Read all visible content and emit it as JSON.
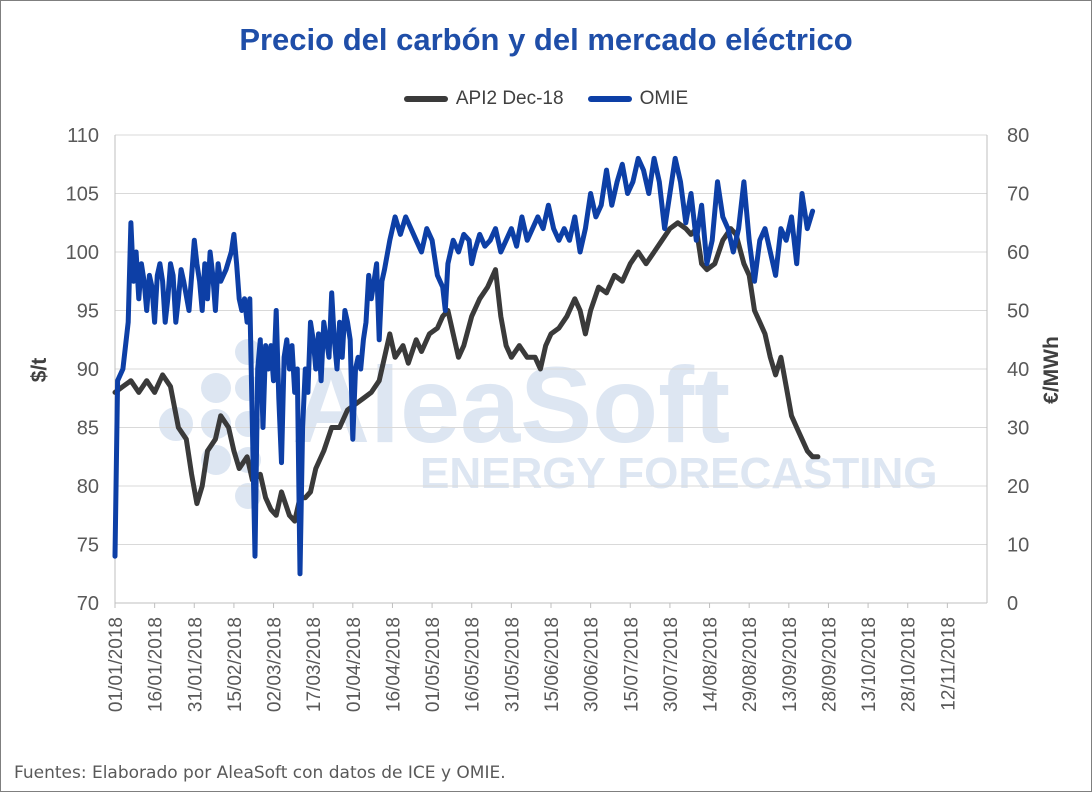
{
  "title": "Precio del carbón y del mercado eléctrico",
  "source": "Fuentes: Elaborado por AleaSoft con datos de ICE y OMIE.",
  "watermark": {
    "line1": "AleaSoft",
    "line2": "ENERGY FORECASTING"
  },
  "colors": {
    "api2": "#3a3a3a",
    "omie": "#0d3fa6",
    "title": "#1f4ea8",
    "watermark": "#dde6f2"
  },
  "chart_data": {
    "type": "line",
    "title": "Precio del carbón y del mercado eléctrico",
    "ylabel_left": "$/t",
    "ylabel_right": "€/MWh",
    "ylim_left": [
      70,
      110
    ],
    "ylim_right": [
      0,
      80
    ],
    "yticks_left": [
      "70",
      "75",
      "80",
      "85",
      "90",
      "95",
      "100",
      "105",
      "110"
    ],
    "yticks_right": [
      "0",
      "10",
      "20",
      "30",
      "40",
      "50",
      "60",
      "70",
      "80"
    ],
    "xticks": [
      "01/01/2018",
      "16/01/2018",
      "31/01/2018",
      "15/02/2018",
      "02/03/2018",
      "17/03/2018",
      "01/04/2018",
      "16/04/2018",
      "01/05/2018",
      "16/05/2018",
      "31/05/2018",
      "15/06/2018",
      "30/06/2018",
      "15/07/2018",
      "30/07/2018",
      "14/08/2018",
      "29/08/2018",
      "13/09/2018",
      "28/09/2018",
      "13/10/2018",
      "28/10/2018",
      "12/11/2018"
    ],
    "x_day_range": [
      0,
      330
    ],
    "grid": "horizontal",
    "legend_position": "top",
    "series": [
      {
        "name": "API2 Dec-18",
        "axis": "left",
        "points": [
          [
            0,
            88
          ],
          [
            3,
            88.5
          ],
          [
            6,
            89
          ],
          [
            9,
            88
          ],
          [
            12,
            89
          ],
          [
            15,
            88
          ],
          [
            18,
            89.5
          ],
          [
            21,
            88.5
          ],
          [
            24,
            85
          ],
          [
            27,
            84
          ],
          [
            29,
            81
          ],
          [
            31,
            78.5
          ],
          [
            33,
            80
          ],
          [
            35,
            83
          ],
          [
            38,
            84
          ],
          [
            40,
            86
          ],
          [
            43,
            85
          ],
          [
            45,
            83
          ],
          [
            47,
            81.5
          ],
          [
            50,
            82.5
          ],
          [
            52,
            80.5
          ],
          [
            55,
            81
          ],
          [
            57,
            79
          ],
          [
            59,
            78
          ],
          [
            61,
            77.5
          ],
          [
            63,
            79.5
          ],
          [
            66,
            77.5
          ],
          [
            68,
            77
          ],
          [
            70,
            79
          ],
          [
            72,
            79
          ],
          [
            74,
            79.5
          ],
          [
            76,
            81.5
          ],
          [
            79,
            83
          ],
          [
            82,
            85
          ],
          [
            85,
            85
          ],
          [
            88,
            86.5
          ],
          [
            91,
            87
          ],
          [
            94,
            87.5
          ],
          [
            97,
            88
          ],
          [
            100,
            89
          ],
          [
            102,
            91
          ],
          [
            104,
            93
          ],
          [
            106,
            91
          ],
          [
            109,
            92
          ],
          [
            111,
            90.5
          ],
          [
            114,
            92.5
          ],
          [
            116,
            91.5
          ],
          [
            119,
            93
          ],
          [
            122,
            93.5
          ],
          [
            124,
            94.5
          ],
          [
            126,
            95
          ],
          [
            128,
            93
          ],
          [
            130,
            91
          ],
          [
            132,
            92
          ],
          [
            135,
            94.5
          ],
          [
            138,
            96
          ],
          [
            141,
            97
          ],
          [
            144,
            98.5
          ],
          [
            146,
            94.5
          ],
          [
            148,
            92
          ],
          [
            150,
            91
          ],
          [
            153,
            92
          ],
          [
            156,
            91
          ],
          [
            159,
            91
          ],
          [
            161,
            90
          ],
          [
            163,
            92
          ],
          [
            165,
            93
          ],
          [
            168,
            93.5
          ],
          [
            171,
            94.5
          ],
          [
            174,
            96
          ],
          [
            176,
            95
          ],
          [
            178,
            93
          ],
          [
            180,
            95
          ],
          [
            183,
            97
          ],
          [
            186,
            96.5
          ],
          [
            189,
            98
          ],
          [
            192,
            97.5
          ],
          [
            195,
            99
          ],
          [
            198,
            100
          ],
          [
            201,
            99
          ],
          [
            204,
            100
          ],
          [
            207,
            101
          ],
          [
            210,
            102
          ],
          [
            213,
            102.5
          ],
          [
            216,
            102
          ],
          [
            218,
            101.5
          ],
          [
            220,
            102
          ],
          [
            222,
            99
          ],
          [
            224,
            98.5
          ],
          [
            227,
            99
          ],
          [
            230,
            101
          ],
          [
            233,
            102
          ],
          [
            235,
            101.5
          ],
          [
            238,
            99
          ],
          [
            240,
            98
          ],
          [
            242,
            95
          ],
          [
            244,
            94
          ],
          [
            246,
            93
          ],
          [
            248,
            91
          ],
          [
            250,
            89.5
          ],
          [
            252,
            91
          ],
          [
            254,
            88.5
          ],
          [
            256,
            86
          ],
          [
            258,
            85
          ],
          [
            260,
            84
          ],
          [
            262,
            83
          ],
          [
            264,
            82.5
          ],
          [
            266,
            82.5
          ]
        ]
      },
      {
        "name": "OMIE",
        "axis": "right",
        "points": [
          [
            0,
            8
          ],
          [
            1,
            38
          ],
          [
            3,
            40
          ],
          [
            5,
            48
          ],
          [
            6,
            65
          ],
          [
            7,
            55
          ],
          [
            8,
            60
          ],
          [
            9,
            52
          ],
          [
            10,
            58
          ],
          [
            11,
            55
          ],
          [
            12,
            50
          ],
          [
            13,
            56
          ],
          [
            14,
            54
          ],
          [
            15,
            48
          ],
          [
            16,
            56
          ],
          [
            17,
            58
          ],
          [
            18,
            55
          ],
          [
            19,
            48
          ],
          [
            20,
            52
          ],
          [
            21,
            58
          ],
          [
            22,
            56
          ],
          [
            23,
            48
          ],
          [
            24,
            52
          ],
          [
            25,
            57
          ],
          [
            26,
            55
          ],
          [
            28,
            50
          ],
          [
            30,
            62
          ],
          [
            31,
            58
          ],
          [
            32,
            55
          ],
          [
            33,
            50
          ],
          [
            34,
            58
          ],
          [
            35,
            52
          ],
          [
            36,
            60
          ],
          [
            37,
            56
          ],
          [
            38,
            50
          ],
          [
            39,
            58
          ],
          [
            40,
            55
          ],
          [
            42,
            57
          ],
          [
            44,
            60
          ],
          [
            45,
            63
          ],
          [
            46,
            58
          ],
          [
            47,
            52
          ],
          [
            48,
            50
          ],
          [
            49,
            52
          ],
          [
            50,
            48
          ],
          [
            51,
            52
          ],
          [
            53,
            8
          ],
          [
            54,
            40
          ],
          [
            55,
            45
          ],
          [
            56,
            30
          ],
          [
            57,
            44
          ],
          [
            58,
            40
          ],
          [
            59,
            44
          ],
          [
            60,
            38
          ],
          [
            61,
            50
          ],
          [
            62,
            35
          ],
          [
            63,
            24
          ],
          [
            64,
            42
          ],
          [
            65,
            45
          ],
          [
            66,
            40
          ],
          [
            67,
            44
          ],
          [
            68,
            36
          ],
          [
            69,
            40
          ],
          [
            70,
            5
          ],
          [
            71,
            30
          ],
          [
            72,
            40
          ],
          [
            73,
            36
          ],
          [
            74,
            48
          ],
          [
            75,
            45
          ],
          [
            76,
            40
          ],
          [
            77,
            46
          ],
          [
            78,
            38
          ],
          [
            79,
            48
          ],
          [
            80,
            45
          ],
          [
            81,
            42
          ],
          [
            82,
            53
          ],
          [
            83,
            45
          ],
          [
            84,
            40
          ],
          [
            85,
            48
          ],
          [
            86,
            42
          ],
          [
            87,
            50
          ],
          [
            88,
            48
          ],
          [
            89,
            45
          ],
          [
            90,
            28
          ],
          [
            91,
            40
          ],
          [
            92,
            42
          ],
          [
            93,
            40
          ],
          [
            94,
            45
          ],
          [
            95,
            48
          ],
          [
            96,
            56
          ],
          [
            97,
            52
          ],
          [
            98,
            55
          ],
          [
            99,
            58
          ],
          [
            100,
            45
          ],
          [
            101,
            55
          ],
          [
            102,
            57
          ],
          [
            104,
            62
          ],
          [
            106,
            66
          ],
          [
            108,
            63
          ],
          [
            110,
            66
          ],
          [
            112,
            64
          ],
          [
            114,
            62
          ],
          [
            116,
            60
          ],
          [
            118,
            64
          ],
          [
            120,
            62
          ],
          [
            121,
            59
          ],
          [
            122,
            56
          ],
          [
            124,
            54
          ],
          [
            125,
            50
          ],
          [
            126,
            58
          ],
          [
            128,
            62
          ],
          [
            130,
            60
          ],
          [
            132,
            63
          ],
          [
            134,
            62
          ],
          [
            135,
            58
          ],
          [
            136,
            60
          ],
          [
            138,
            63
          ],
          [
            140,
            61
          ],
          [
            142,
            62
          ],
          [
            144,
            64
          ],
          [
            146,
            60
          ],
          [
            148,
            62
          ],
          [
            150,
            64
          ],
          [
            152,
            61
          ],
          [
            154,
            66
          ],
          [
            156,
            62
          ],
          [
            158,
            64
          ],
          [
            160,
            66
          ],
          [
            162,
            64
          ],
          [
            164,
            68
          ],
          [
            166,
            64
          ],
          [
            168,
            62
          ],
          [
            170,
            64
          ],
          [
            172,
            62
          ],
          [
            174,
            66
          ],
          [
            176,
            60
          ],
          [
            178,
            64
          ],
          [
            180,
            70
          ],
          [
            182,
            66
          ],
          [
            184,
            68
          ],
          [
            186,
            74
          ],
          [
            188,
            68
          ],
          [
            190,
            72
          ],
          [
            192,
            75
          ],
          [
            194,
            70
          ],
          [
            196,
            72
          ],
          [
            198,
            76
          ],
          [
            200,
            74
          ],
          [
            202,
            70
          ],
          [
            204,
            76
          ],
          [
            206,
            72
          ],
          [
            208,
            64
          ],
          [
            210,
            70
          ],
          [
            212,
            76
          ],
          [
            214,
            72
          ],
          [
            216,
            65
          ],
          [
            218,
            70
          ],
          [
            220,
            62
          ],
          [
            222,
            68
          ],
          [
            224,
            58
          ],
          [
            226,
            62
          ],
          [
            228,
            72
          ],
          [
            230,
            66
          ],
          [
            232,
            64
          ],
          [
            234,
            60
          ],
          [
            236,
            64
          ],
          [
            238,
            72
          ],
          [
            240,
            62
          ],
          [
            242,
            55
          ],
          [
            244,
            62
          ],
          [
            246,
            64
          ],
          [
            248,
            60
          ],
          [
            250,
            56
          ],
          [
            252,
            64
          ],
          [
            254,
            62
          ],
          [
            256,
            66
          ],
          [
            258,
            58
          ],
          [
            260,
            70
          ],
          [
            262,
            64
          ],
          [
            264,
            67
          ]
        ]
      }
    ]
  }
}
